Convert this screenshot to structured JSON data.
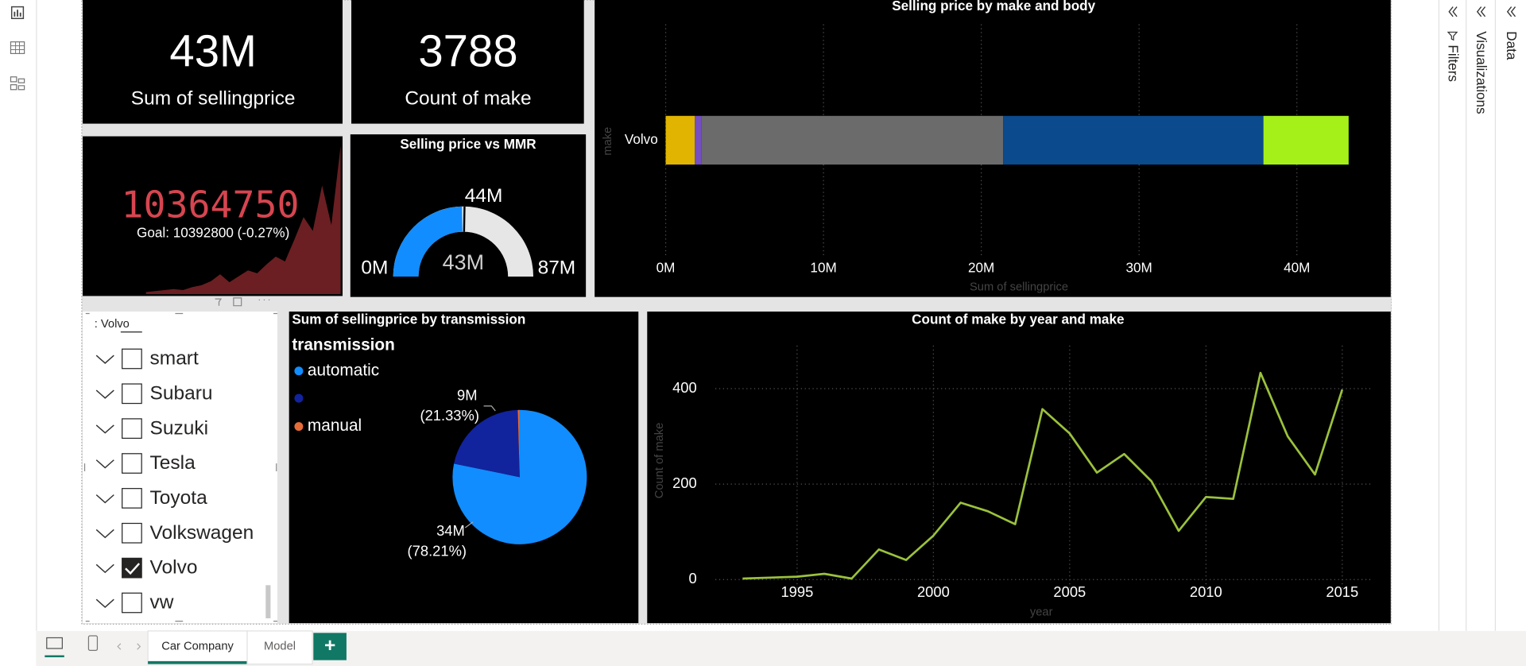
{
  "app": {
    "pages": [
      "Car Company",
      "Model"
    ],
    "active_page": 0,
    "add_page": "+",
    "panes": [
      "Filters",
      "Visualizations",
      "Data"
    ]
  },
  "cards": [
    {
      "value": "43M",
      "label": "Sum of sellingprice"
    },
    {
      "value": "3788",
      "label": "Count of make"
    }
  ],
  "kpi": {
    "value": "10364750",
    "status": "!",
    "goal": "Goal: 10392800 (-0.27%)",
    "color": "#d64550",
    "trend_color": "#6b1f22",
    "trend": [
      2,
      3,
      4,
      5,
      4,
      7,
      9,
      13,
      20,
      12,
      18,
      24,
      21,
      30,
      38,
      33,
      55,
      78,
      64,
      110,
      70,
      150
    ]
  },
  "gauge": {
    "title": "Selling price vs MMR",
    "min": {
      "value": 0,
      "label": "0M"
    },
    "max": {
      "value": 87,
      "label": "87M"
    },
    "target": {
      "value": 44,
      "label": "44M"
    },
    "value": {
      "value": 43,
      "label": "43M"
    },
    "color": "#118dff",
    "track_color": "#e6e6e6"
  },
  "bar_chart": {
    "type": "bar",
    "orientation": "horizontal",
    "stacked": true,
    "title": "Selling price by make and body",
    "y_label": "make",
    "x_label": "Sum of sellingprice",
    "categories": [
      "Volvo"
    ],
    "series": [
      {
        "color": "#e0b400",
        "values": [
          1.85
        ]
      },
      {
        "color": "#744ec2",
        "values": [
          0.43
        ]
      },
      {
        "color": "#6b6b6b",
        "values": [
          19.1
        ]
      },
      {
        "color": "#0b4a8c",
        "values": [
          16.5
        ]
      },
      {
        "color": "#a6f01a",
        "values": [
          5.4
        ]
      }
    ],
    "xlim": [
      0,
      45.7
    ],
    "xticks": [
      {
        "value": 0,
        "label": "0M"
      },
      {
        "value": 10,
        "label": "10M"
      },
      {
        "value": 20,
        "label": "20M"
      },
      {
        "value": 30,
        "label": "30M"
      },
      {
        "value": 40,
        "label": "40M"
      }
    ],
    "grid": true
  },
  "pie_chart": {
    "type": "pie",
    "title": "Sum of sellingprice by transmission",
    "legend_title": "transmission",
    "categories": [
      "automatic",
      null,
      "manual"
    ],
    "values": [
      78.21,
      21.33,
      0.46
    ],
    "value_labels": [
      "(78.21%)",
      "(21.33%)",
      null
    ],
    "amount_labels": [
      "34M",
      "9M",
      null
    ],
    "colors": [
      "#118dff",
      "#12239e",
      "#e66c37"
    ]
  },
  "line_chart": {
    "type": "line",
    "title": "Count of make by year and make",
    "x_label": "year",
    "y_label": "Count of make",
    "x": [
      1993,
      1994,
      1995,
      1996,
      1997,
      1998,
      1999,
      2000,
      2001,
      2002,
      2003,
      2004,
      2005,
      2006,
      2007,
      2008,
      2009,
      2010,
      2011,
      2012,
      2013,
      2014,
      2015
    ],
    "series": [
      {
        "color": "#9bc13c",
        "values": [
          2,
          4,
          6,
          12,
          2,
          63,
          41,
          92,
          161,
          143,
          116,
          357,
          306,
          224,
          263,
          206,
          102,
          173,
          169,
          433,
          300,
          220,
          398
        ]
      }
    ],
    "xlim": [
      1992,
      2016.1
    ],
    "xticks": [
      1995,
      2000,
      2005,
      2010,
      2015
    ],
    "ylim": [
      -20,
      490
    ],
    "yticks": [
      0,
      200,
      400
    ],
    "grid": true
  },
  "slicer": {
    "header": ": Volvo",
    "items": [
      "smart",
      "Subaru",
      "Suzuki",
      "Tesla",
      "Toyota",
      "Volkswagen",
      "Volvo",
      "vw"
    ],
    "checked": [
      false,
      false,
      false,
      false,
      false,
      false,
      true,
      false
    ]
  }
}
